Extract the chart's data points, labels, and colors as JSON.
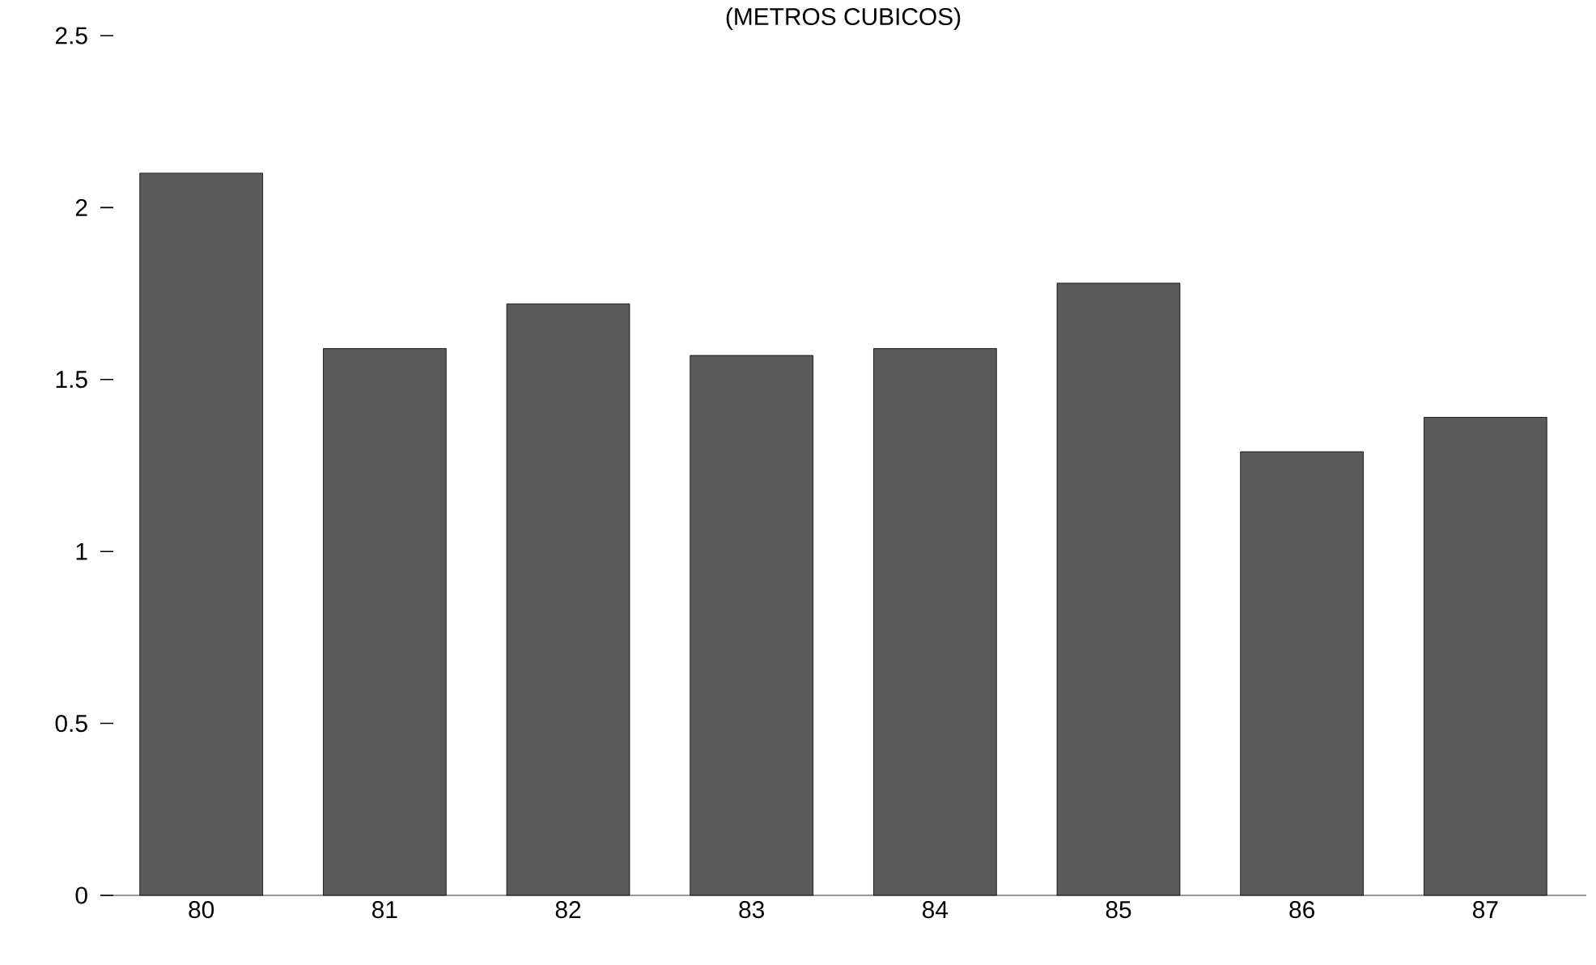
{
  "chart_data": {
    "type": "bar",
    "title": "(METROS CUBICOS)",
    "categories": [
      "80",
      "81",
      "82",
      "83",
      "84",
      "85",
      "86",
      "87"
    ],
    "values": [
      2.1,
      1.59,
      1.72,
      1.57,
      1.59,
      1.78,
      1.29,
      1.39
    ],
    "color": "#5a5a5a",
    "ylim": [
      0,
      2.5
    ],
    "yticks": [
      0,
      0.5,
      1,
      1.5,
      2,
      2.5
    ],
    "grid": false
  }
}
